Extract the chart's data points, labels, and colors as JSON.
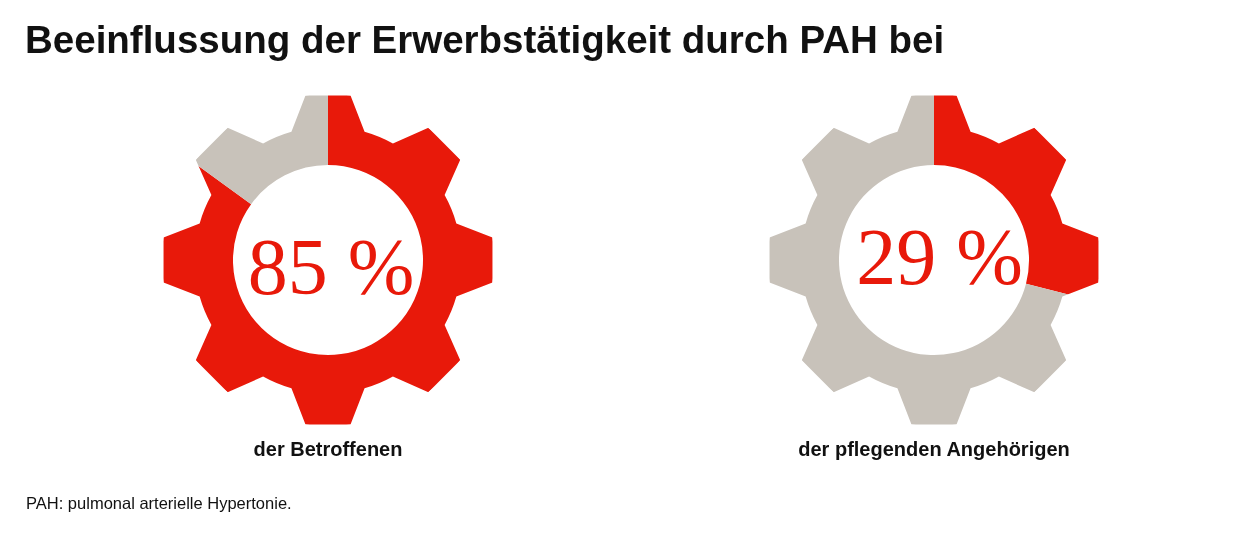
{
  "chart_data": [
    {
      "type": "donut",
      "title": "Beeinflussung der Erwerbstätigkeit durch PAH bei",
      "categories": [
        null,
        null
      ],
      "values": [
        85,
        15
      ],
      "colors": [
        "#e8190a",
        "#c8c2ba"
      ],
      "value_labels": [
        "85 %",
        null
      ],
      "xlabel": "der Betroffenen",
      "annotations": [
        "PAH: pulmonal arterielle Hypertonie."
      ]
    },
    {
      "type": "donut",
      "categories": [
        null,
        null
      ],
      "values": [
        29,
        71
      ],
      "colors": [
        "#e8190a",
        "#c8c2ba"
      ],
      "value_labels": [
        "29 %",
        null
      ],
      "xlabel": "der pflegenden Angehörigen"
    }
  ]
}
